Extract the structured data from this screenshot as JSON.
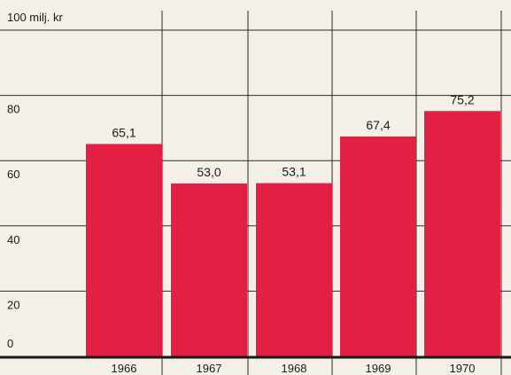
{
  "chart_data": {
    "type": "bar",
    "unit_label": "100 milj. kr",
    "categories": [
      "1966",
      "1967",
      "1968",
      "1969",
      "1970"
    ],
    "values": [
      65.1,
      53.0,
      53.1,
      67.4,
      75.2
    ],
    "value_labels": [
      "65,1",
      "53,0",
      "53,1",
      "67,4",
      "75,2"
    ],
    "y_ticks": [
      "0",
      "20",
      "40",
      "60",
      "80"
    ],
    "ylim": [
      0,
      100
    ],
    "grid": true,
    "bar_color": "#e31f43",
    "title": "",
    "xlabel": "",
    "ylabel": ""
  }
}
